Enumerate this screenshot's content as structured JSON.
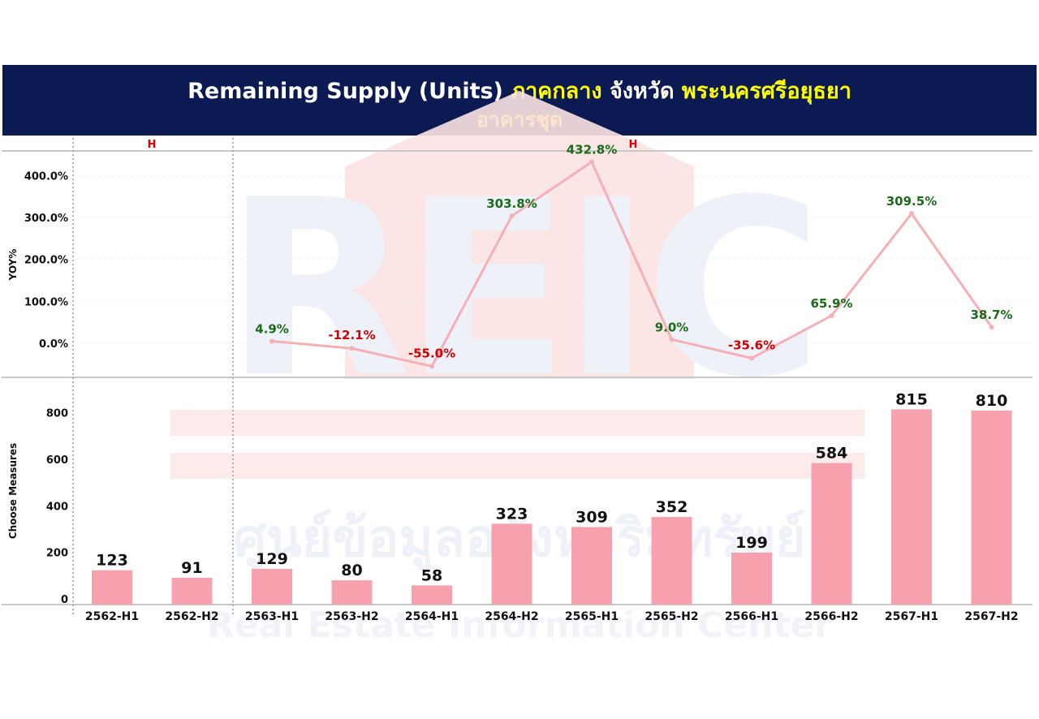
{
  "header": {
    "title_part1": "Remaining Supply (Units)",
    "region": "ภาคกลาง",
    "province_label": "จังหวัด",
    "province": "พระนครศรีอยุธยา",
    "subtitle": "อาคารชุด"
  },
  "watermark": {
    "logo": "REIC",
    "thai_name": "ศูนย์ข้อมูลอสังหาริมทรัพย์",
    "english_name": "Real Estate Information Center"
  },
  "colors": {
    "header_bg": "#0b1a52",
    "title_white": "#ffffff",
    "title_yellow": "#ffff00",
    "bar": "#f7a1ae",
    "line": "#f5b0b7",
    "positive_label": "#1a6b1a",
    "negative_label": "#d40000",
    "h_label": "#e00000"
  },
  "chart_data": [
    {
      "type": "line",
      "ylabel": "YOY%",
      "y_ticks": [
        "0.0%",
        "100.0%",
        "200.0%",
        "300.0%",
        "400.0%"
      ],
      "ylim": [
        -80,
        450
      ],
      "group_labels": [
        "H",
        "H"
      ],
      "categories": [
        "2562-H1",
        "2562-H2",
        "2563-H1",
        "2563-H2",
        "2564-H1",
        "2564-H2",
        "2565-H1",
        "2565-H2",
        "2566-H1",
        "2566-H2",
        "2567-H1",
        "2567-H2"
      ],
      "values": [
        null,
        null,
        4.9,
        -12.1,
        -55.0,
        303.8,
        432.8,
        9.0,
        -35.6,
        65.9,
        309.5,
        38.7
      ],
      "labels": [
        "",
        "",
        "4.9%",
        "-12.1%",
        "-55.0%",
        "303.8%",
        "432.8%",
        "9.0%",
        "-35.6%",
        "65.9%",
        "309.5%",
        "38.7%"
      ]
    },
    {
      "type": "bar",
      "ylabel": "Choose Measures",
      "y_ticks": [
        "0",
        "200",
        "400",
        "600",
        "800"
      ],
      "ylim": [
        0,
        900
      ],
      "categories": [
        "2562-H1",
        "2562-H2",
        "2563-H1",
        "2563-H2",
        "2564-H1",
        "2564-H2",
        "2565-H1",
        "2565-H2",
        "2566-H1",
        "2566-H2",
        "2567-H1",
        "2567-H2"
      ],
      "values": [
        123,
        91,
        129,
        80,
        58,
        323,
        309,
        352,
        199,
        584,
        815,
        810
      ]
    }
  ]
}
